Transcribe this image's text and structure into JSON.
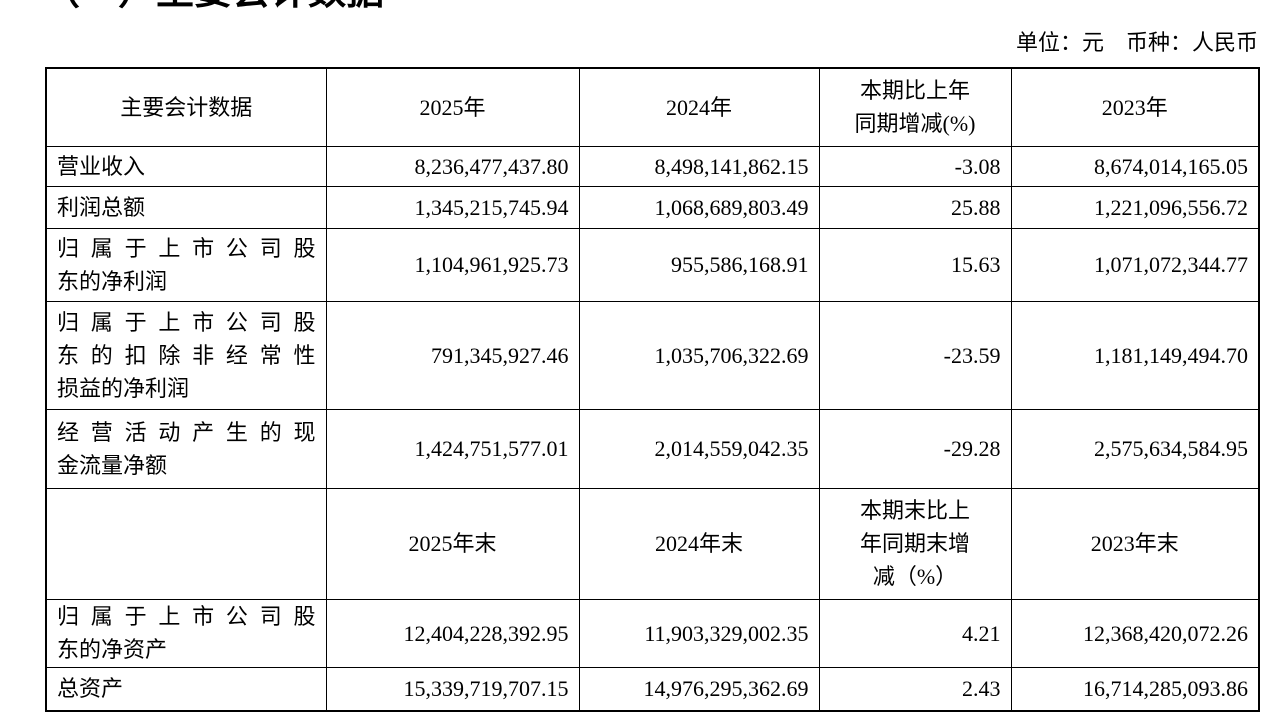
{
  "document": {
    "section_title": "（一）主要会计数据",
    "unit_note": "单位：元　币种：人民币"
  },
  "table": {
    "period_header": {
      "label": "主要会计数据",
      "col_2025": "2025年",
      "col_2024": "2024年",
      "col_change": "本期比上年\n同期增减(%)",
      "col_2023": "2023年"
    },
    "period_rows": [
      {
        "label": "营业收入",
        "y2025": "8,236,477,437.80",
        "y2024": "8,498,141,862.15",
        "change": "-3.08",
        "y2023": "8,674,014,165.05"
      },
      {
        "label": "利润总额",
        "y2025": "1,345,215,745.94",
        "y2024": "1,068,689,803.49",
        "change": "25.88",
        "y2023": "1,221,096,556.72"
      },
      {
        "label": "归属于上市公司股\n东的净利润",
        "y2025": "1,104,961,925.73",
        "y2024": "955,586,168.91",
        "change": "15.63",
        "y2023": "1,071,072,344.77"
      },
      {
        "label": "归属于上市公司股\n东的扣除非经常性\n损益的净利润",
        "y2025": "791,345,927.46",
        "y2024": "1,035,706,322.69",
        "change": "-23.59",
        "y2023": "1,181,149,494.70"
      },
      {
        "label": "经营活动产生的现\n金流量净额",
        "y2025": "1,424,751,577.01",
        "y2024": "2,014,559,042.35",
        "change": "-29.28",
        "y2023": "2,575,634,584.95"
      }
    ],
    "point_header": {
      "label": "",
      "col_2025": "2025年末",
      "col_2024": "2024年末",
      "col_change": "本期末比上\n年同期末增\n减（%）",
      "col_2023": "2023年末"
    },
    "point_rows": [
      {
        "label": "归属于上市公司股\n东的净资产",
        "y2025": "12,404,228,392.95",
        "y2024": "11,903,329,002.35",
        "change": "4.21",
        "y2023": "12,368,420,072.26"
      },
      {
        "label": "总资产",
        "y2025": "15,339,719,707.15",
        "y2024": "14,976,295,362.69",
        "change": "2.43",
        "y2023": "16,714,285,093.86"
      }
    ]
  }
}
